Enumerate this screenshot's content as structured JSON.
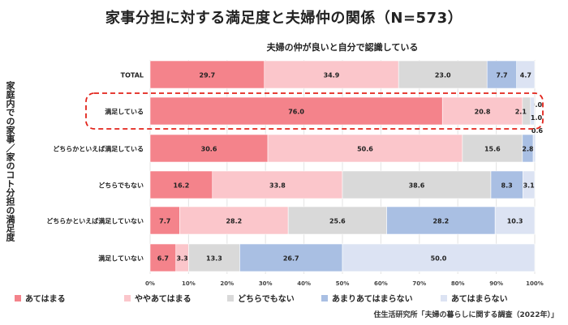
{
  "title": "家事分担に対する満足度と夫婦仲の関係（N=573）",
  "subtitle": "夫婦の仲が良いと自分で認識している",
  "ylabel": "家庭内での家事／家のコト分担の満足度",
  "source": "住生活研究所「夫婦の暮らしに関する調査（2022年）」",
  "chart_data": {
    "type": "bar",
    "orientation": "horizontal",
    "stacked": true,
    "percent": true,
    "title": "家事分担に対する満足度と夫婦仲の関係（N=573）",
    "subtitle": "夫婦の仲が良いと自分で認識している",
    "ylabel": "家庭内での家事／家のコト分担の満足度",
    "categories": [
      "TOTAL",
      "満足している",
      "どちらかといえば満足している",
      "どちらでもない",
      "どちらかといえば満足していない",
      "満足していない"
    ],
    "series": [
      {
        "name": "あてはまる",
        "color": "#f4838b",
        "values": [
          29.7,
          76.0,
          30.6,
          16.2,
          7.7,
          6.7
        ],
        "labels": [
          "29.7",
          "76.0",
          "30.6",
          "16.2",
          "7.7",
          "6.7"
        ]
      },
      {
        "name": "ややあてはまる",
        "color": "#fbc6cb",
        "values": [
          34.9,
          20.8,
          50.6,
          33.8,
          28.2,
          3.3
        ],
        "labels": [
          "34.9",
          "20.8",
          "50.6",
          "33.8",
          "28.2",
          "3.3"
        ]
      },
      {
        "name": "どちらでもない",
        "color": "#d9d9d9",
        "values": [
          23.0,
          2.1,
          15.6,
          38.6,
          25.6,
          13.3
        ],
        "labels": [
          "23.0",
          "2.1",
          "15.6",
          "38.6",
          "25.6",
          "13.3"
        ]
      },
      {
        "name": "あまりあてはまらない",
        "color": "#a9bfe3",
        "values": [
          7.7,
          0.0,
          2.8,
          8.3,
          28.2,
          26.7
        ],
        "labels": [
          "7.7",
          "0.0",
          "2.8",
          "8.3",
          "28.2",
          "26.7"
        ]
      },
      {
        "name": "あてはまらない",
        "color": "#dce3f3",
        "values": [
          4.7,
          1.0,
          0.6,
          3.1,
          10.3,
          50.0
        ],
        "labels": [
          "4.7",
          "1.0",
          "0.6",
          "3.1",
          "10.3",
          "50.0"
        ]
      }
    ],
    "xticks": [
      "0%",
      "10%",
      "20%",
      "30%",
      "40%",
      "50%",
      "60%",
      "70%",
      "80%",
      "90%",
      "100%"
    ],
    "xlim": [
      0,
      100
    ],
    "highlighted_category": "満足している",
    "grid": true,
    "legend": "bottom"
  }
}
